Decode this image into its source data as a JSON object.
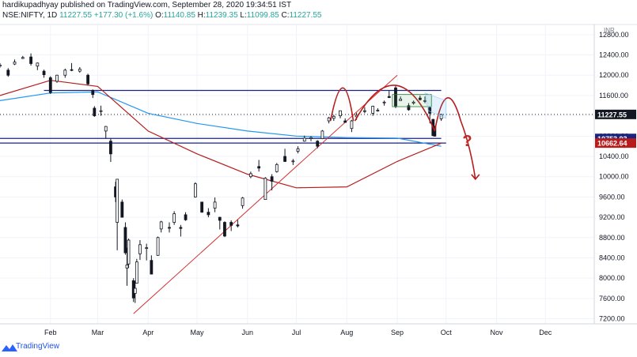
{
  "header": {
    "line1": "hardikupadhyay published on TradingView.com, September 28, 2020 19:34:51 IST",
    "symbol": "NSE:NIFTY, 1D",
    "price": "11227.55",
    "change": "+177.30 (+1.6%)",
    "open_label": "O:",
    "open": "11140.85",
    "high_label": "H:",
    "high": "11239.35",
    "low_label": "L:",
    "low": "11099.85",
    "close_label": "C:",
    "close": "11227.55"
  },
  "footer": {
    "brand": "TradingView",
    "brand_icon": "tradingview-logo-icon"
  },
  "colors": {
    "up": "#131722",
    "down": "#131722",
    "ema_short": "#2196f3",
    "ema_long": "#b71c1c",
    "support_lines": "#1a237e",
    "trendline": "#d32f2f",
    "projection": "#b71c1c",
    "price_badge": "#131722",
    "badge_blue": "#1a237e",
    "badge_red": "#b71c1c"
  },
  "chart_data": {
    "type": "candlestick",
    "title": "",
    "currency": "INR",
    "x_ticks": [
      "Feb",
      "Mar",
      "Apr",
      "May",
      "Jun",
      "Jul",
      "Aug",
      "Sep",
      "Oct",
      "Nov",
      "Dec"
    ],
    "y_ticks": [
      7200,
      7600,
      8000,
      8400,
      8800,
      9200,
      9600,
      10000,
      10400,
      10800,
      11200,
      11600,
      12000,
      12400,
      12800
    ],
    "ylim": [
      7100,
      13000
    ],
    "date_range": [
      "2020-01-01",
      "2020-12-31"
    ],
    "last_price": "11227.55",
    "price_labels": [
      "10753.93",
      "10662.64"
    ],
    "candles": [
      {
        "date": "2020-01-01",
        "open": 12180,
        "high": 12240,
        "low": 12150,
        "close": 12200
      },
      {
        "date": "2020-01-06",
        "open": 12100,
        "high": 12140,
        "low": 11970,
        "close": 12000
      },
      {
        "date": "2020-01-10",
        "open": 12220,
        "high": 12310,
        "low": 12200,
        "close": 12260
      },
      {
        "date": "2020-01-15",
        "open": 12330,
        "high": 12380,
        "low": 12320,
        "close": 12350
      },
      {
        "date": "2020-01-20",
        "open": 12360,
        "high": 12430,
        "low": 12190,
        "close": 12230
      },
      {
        "date": "2020-01-24",
        "open": 12180,
        "high": 12250,
        "low": 12100,
        "close": 12240
      },
      {
        "date": "2020-01-28",
        "open": 12080,
        "high": 12110,
        "low": 11950,
        "close": 12010
      },
      {
        "date": "2020-02-01",
        "open": 11950,
        "high": 11980,
        "low": 11630,
        "close": 11660
      },
      {
        "date": "2020-02-05",
        "open": 11880,
        "high": 12010,
        "low": 11850,
        "close": 12000
      },
      {
        "date": "2020-02-10",
        "open": 12000,
        "high": 12130,
        "low": 11950,
        "close": 12100
      },
      {
        "date": "2020-02-14",
        "open": 12110,
        "high": 12240,
        "low": 12080,
        "close": 12100
      },
      {
        "date": "2020-02-19",
        "open": 12080,
        "high": 12160,
        "low": 12050,
        "close": 12120
      },
      {
        "date": "2020-02-24",
        "open": 12000,
        "high": 12030,
        "low": 11800,
        "close": 11830
      },
      {
        "date": "2020-02-27",
        "open": 11700,
        "high": 11720,
        "low": 11550,
        "close": 11620
      },
      {
        "date": "2020-02-28",
        "open": 11350,
        "high": 11390,
        "low": 11180,
        "close": 11200
      },
      {
        "date": "2020-03-03",
        "open": 11300,
        "high": 11400,
        "low": 11200,
        "close": 11300
      },
      {
        "date": "2020-03-06",
        "open": 10900,
        "high": 11000,
        "low": 10750,
        "close": 10990
      },
      {
        "date": "2020-03-09",
        "open": 10700,
        "high": 10750,
        "low": 10290,
        "close": 10450
      },
      {
        "date": "2020-03-12",
        "open": 9800,
        "high": 9900,
        "low": 9500,
        "close": 9600
      },
      {
        "date": "2020-03-13",
        "open": 9100,
        "high": 9950,
        "low": 8550,
        "close": 9950
      },
      {
        "date": "2020-03-16",
        "open": 9500,
        "high": 9550,
        "low": 9200,
        "close": 9200
      },
      {
        "date": "2020-03-18",
        "open": 9000,
        "high": 9100,
        "low": 8460,
        "close": 8500
      },
      {
        "date": "2020-03-19",
        "open": 8200,
        "high": 8600,
        "low": 7850,
        "close": 8260
      },
      {
        "date": "2020-03-20",
        "open": 8280,
        "high": 8780,
        "low": 8200,
        "close": 8750
      },
      {
        "date": "2020-03-23",
        "open": 7950,
        "high": 8000,
        "low": 7530,
        "close": 7610
      },
      {
        "date": "2020-03-24",
        "open": 7700,
        "high": 7940,
        "low": 7510,
        "close": 7800
      },
      {
        "date": "2020-03-25",
        "open": 7900,
        "high": 8380,
        "low": 7900,
        "close": 8320
      },
      {
        "date": "2020-03-27",
        "open": 8480,
        "high": 8750,
        "low": 8360,
        "close": 8660
      },
      {
        "date": "2020-03-31",
        "open": 8600,
        "high": 8680,
        "low": 8350,
        "close": 8600
      },
      {
        "date": "2020-04-03",
        "open": 8350,
        "high": 8450,
        "low": 8080,
        "close": 8080
      },
      {
        "date": "2020-04-07",
        "open": 8450,
        "high": 8820,
        "low": 8440,
        "close": 8800
      },
      {
        "date": "2020-04-09",
        "open": 8970,
        "high": 9130,
        "low": 8900,
        "close": 9110
      },
      {
        "date": "2020-04-14",
        "open": 9000,
        "high": 9100,
        "low": 8900,
        "close": 8990
      },
      {
        "date": "2020-04-17",
        "open": 9100,
        "high": 9320,
        "low": 9050,
        "close": 9270
      },
      {
        "date": "2020-04-21",
        "open": 9000,
        "high": 9050,
        "low": 8820,
        "close": 8980
      },
      {
        "date": "2020-04-24",
        "open": 9250,
        "high": 9300,
        "low": 9130,
        "close": 9150
      },
      {
        "date": "2020-04-30",
        "open": 9600,
        "high": 9890,
        "low": 9590,
        "close": 9860
      },
      {
        "date": "2020-05-04",
        "open": 9500,
        "high": 9500,
        "low": 9290,
        "close": 9300
      },
      {
        "date": "2020-05-08",
        "open": 9300,
        "high": 9380,
        "low": 9200,
        "close": 9250
      },
      {
        "date": "2020-05-12",
        "open": 9380,
        "high": 9590,
        "low": 9300,
        "close": 9500
      },
      {
        "date": "2020-05-15",
        "open": 9200,
        "high": 9210,
        "low": 8960,
        "close": 9140
      },
      {
        "date": "2020-05-18",
        "open": 9100,
        "high": 9120,
        "low": 8810,
        "close": 8830
      },
      {
        "date": "2020-05-22",
        "open": 9100,
        "high": 9140,
        "low": 8930,
        "close": 9040
      },
      {
        "date": "2020-05-26",
        "open": 9050,
        "high": 9150,
        "low": 9000,
        "close": 9030
      },
      {
        "date": "2020-05-29",
        "open": 9430,
        "high": 9600,
        "low": 9370,
        "close": 9580
      },
      {
        "date": "2020-06-03",
        "open": 10000,
        "high": 10100,
        "low": 9970,
        "close": 10060
      },
      {
        "date": "2020-06-08",
        "open": 10200,
        "high": 10330,
        "low": 10100,
        "close": 10170
      },
      {
        "date": "2020-06-12",
        "open": 9550,
        "high": 9990,
        "low": 9550,
        "close": 9970
      },
      {
        "date": "2020-06-16",
        "open": 10000,
        "high": 10050,
        "low": 9730,
        "close": 9910
      },
      {
        "date": "2020-06-19",
        "open": 10100,
        "high": 10270,
        "low": 10080,
        "close": 10240
      },
      {
        "date": "2020-06-24",
        "open": 10400,
        "high": 10550,
        "low": 10290,
        "close": 10300
      },
      {
        "date": "2020-06-29",
        "open": 10300,
        "high": 10350,
        "low": 10230,
        "close": 10310
      },
      {
        "date": "2020-07-02",
        "open": 10500,
        "high": 10600,
        "low": 10460,
        "close": 10550
      },
      {
        "date": "2020-07-06",
        "open": 10700,
        "high": 10810,
        "low": 10690,
        "close": 10760
      },
      {
        "date": "2020-07-10",
        "open": 10750,
        "high": 10800,
        "low": 10700,
        "close": 10770
      },
      {
        "date": "2020-07-14",
        "open": 10700,
        "high": 10720,
        "low": 10560,
        "close": 10600
      },
      {
        "date": "2020-07-17",
        "open": 10750,
        "high": 10920,
        "low": 10740,
        "close": 10900
      },
      {
        "date": "2020-07-21",
        "open": 11100,
        "high": 11180,
        "low": 11050,
        "close": 11160
      },
      {
        "date": "2020-07-24",
        "open": 11150,
        "high": 11220,
        "low": 11100,
        "close": 11190
      },
      {
        "date": "2020-07-28",
        "open": 11200,
        "high": 11300,
        "low": 11150,
        "close": 11300
      },
      {
        "date": "2020-07-31",
        "open": 11100,
        "high": 11150,
        "low": 11070,
        "close": 11070
      },
      {
        "date": "2020-08-04",
        "open": 10950,
        "high": 11120,
        "low": 10880,
        "close": 11100
      },
      {
        "date": "2020-08-07",
        "open": 11180,
        "high": 11260,
        "low": 11120,
        "close": 11210
      },
      {
        "date": "2020-08-12",
        "open": 11300,
        "high": 11370,
        "low": 11250,
        "close": 11300
      },
      {
        "date": "2020-08-17",
        "open": 11250,
        "high": 11400,
        "low": 11200,
        "close": 11390
      },
      {
        "date": "2020-08-20",
        "open": 11300,
        "high": 11350,
        "low": 11280,
        "close": 11310
      },
      {
        "date": "2020-08-24",
        "open": 11460,
        "high": 11500,
        "low": 11400,
        "close": 11470
      },
      {
        "date": "2020-08-27",
        "open": 11580,
        "high": 11690,
        "low": 11550,
        "close": 11560
      },
      {
        "date": "2020-08-31",
        "open": 11750,
        "high": 11790,
        "low": 11350,
        "close": 11390
      },
      {
        "date": "2020-09-03",
        "open": 11500,
        "high": 11580,
        "low": 11500,
        "close": 11530
      },
      {
        "date": "2020-09-08",
        "open": 11400,
        "high": 11450,
        "low": 11300,
        "close": 11320
      },
      {
        "date": "2020-09-11",
        "open": 11450,
        "high": 11500,
        "low": 11420,
        "close": 11470
      },
      {
        "date": "2020-09-15",
        "open": 11550,
        "high": 11600,
        "low": 11500,
        "close": 11520
      },
      {
        "date": "2020-09-18",
        "open": 11500,
        "high": 11580,
        "low": 11450,
        "close": 11500
      },
      {
        "date": "2020-09-21",
        "open": 11360,
        "high": 11380,
        "low": 11050,
        "close": 11250
      },
      {
        "date": "2020-09-23",
        "open": 11130,
        "high": 11140,
        "low": 10800,
        "close": 10810
      },
      {
        "date": "2020-09-24",
        "open": 10990,
        "high": 11000,
        "low": 10790,
        "close": 10800
      },
      {
        "date": "2020-09-28",
        "open": 11140.85,
        "high": 11239.35,
        "low": 11099.85,
        "close": 11227.55
      }
    ],
    "ema_short": [
      {
        "date": "2020-01-01",
        "value": 11500
      },
      {
        "date": "2020-02-01",
        "value": 11650
      },
      {
        "date": "2020-03-01",
        "value": 11670
      },
      {
        "date": "2020-04-01",
        "value": 11250
      },
      {
        "date": "2020-05-01",
        "value": 11050
      },
      {
        "date": "2020-06-01",
        "value": 10900
      },
      {
        "date": "2020-07-01",
        "value": 10800
      },
      {
        "date": "2020-08-01",
        "value": 10770
      },
      {
        "date": "2020-09-01",
        "value": 10760
      },
      {
        "date": "2020-09-28",
        "value": 10600
      }
    ],
    "ema_long": [
      {
        "date": "2020-01-01",
        "value": 11600
      },
      {
        "date": "2020-02-01",
        "value": 11900
      },
      {
        "date": "2020-03-01",
        "value": 11780
      },
      {
        "date": "2020-04-01",
        "value": 10900
      },
      {
        "date": "2020-05-01",
        "value": 10450
      },
      {
        "date": "2020-06-01",
        "value": 10050
      },
      {
        "date": "2020-07-01",
        "value": 9780
      },
      {
        "date": "2020-08-01",
        "value": 9800
      },
      {
        "date": "2020-09-01",
        "value": 10300
      },
      {
        "date": "2020-09-28",
        "value": 10660
      }
    ],
    "support_lines": [
      {
        "value": 11700,
        "from": "2020-01-28",
        "to": "2020-09-28"
      },
      {
        "value": 10753.93,
        "from": "2020-01-01",
        "to": "2020-09-28"
      },
      {
        "value": 10662.64,
        "from": "2020-01-01",
        "to": "2020-10-01"
      }
    ],
    "trendline": {
      "from": {
        "date": "2020-03-23",
        "value": 7300
      },
      "to": {
        "date": "2020-09-01",
        "value": 12000
      }
    },
    "projection_marker": "?"
  }
}
